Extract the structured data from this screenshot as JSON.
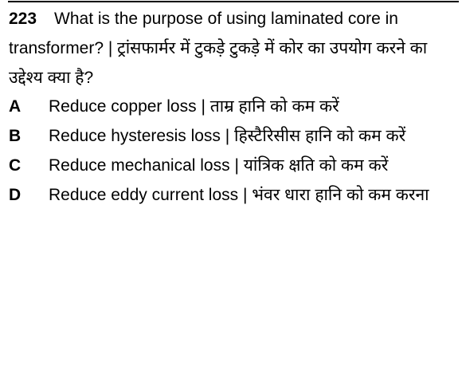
{
  "question": {
    "number": "223",
    "text": "What is the purpose of using laminated core in transformer? | ट्रांसफार्मर में टुकड़े टुकड़े में कोर का उपयोग करने का उद्देश्य क्या है?"
  },
  "options": [
    {
      "letter": "A",
      "text": "Reduce copper loss | ताम्र हानि को कम करें"
    },
    {
      "letter": "B",
      "text": "Reduce hysteresis loss | हिस्टैरिसीस हानि को कम करें"
    },
    {
      "letter": "C",
      "text": "Reduce mechanical loss | यांत्रिक क्षति को कम करें"
    },
    {
      "letter": "D",
      "text": "Reduce eddy current loss | भंवर धारा हानि को कम करना"
    }
  ]
}
